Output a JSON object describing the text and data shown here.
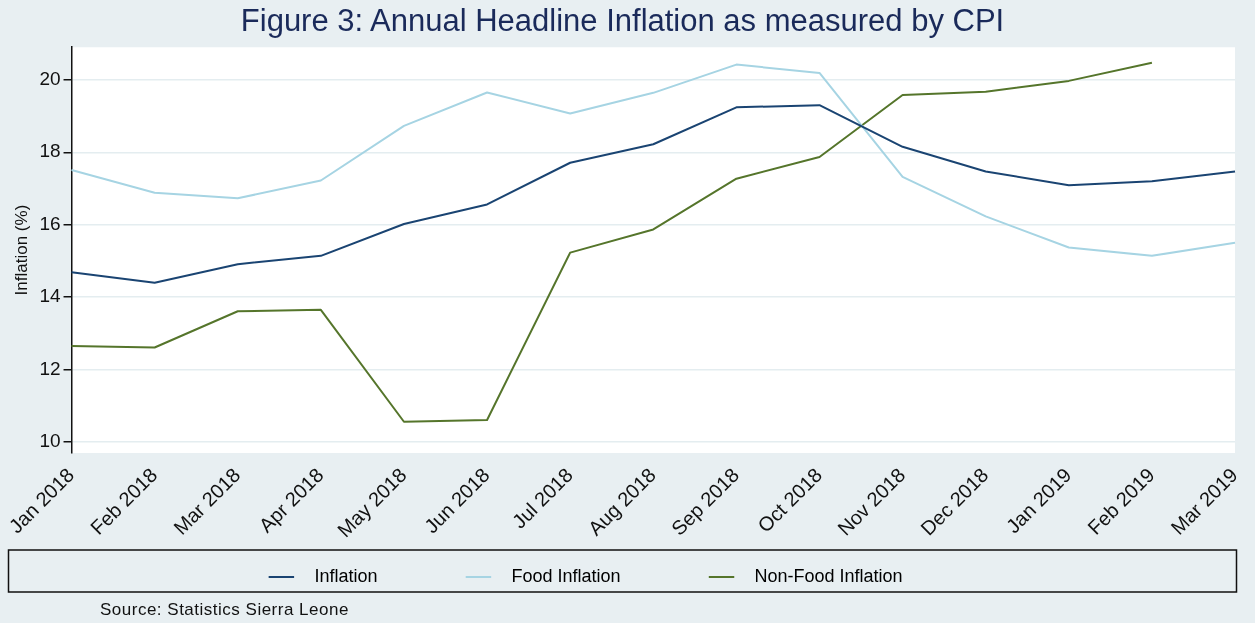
{
  "chart_data": {
    "type": "line",
    "title": "Figure 3: Annual Headline Inflation as measured by CPI",
    "ylabel": "Inflation (%)",
    "categories": [
      "Jan 2018",
      "Feb 2018",
      "Mar 2018",
      "Apr 2018",
      "May 2018",
      "Jun 2018",
      "Jul 2018",
      "Aug 2018",
      "Sep 2018",
      "Oct 2018",
      "Nov 2018",
      "Dec 2018",
      "Jan 2019",
      "Feb 2019",
      "Mar 2019"
    ],
    "series": [
      {
        "name": "Inflation",
        "color": "#1a4472",
        "values": [
          14.69,
          14.4,
          14.91,
          15.14,
          16.02,
          16.56,
          17.71,
          18.22,
          19.24,
          19.3,
          18.15,
          17.47,
          17.09,
          17.2,
          17.47
        ]
      },
      {
        "name": "Food Inflation",
        "color": "#a6d4e3",
        "values": [
          17.51,
          16.88,
          16.73,
          17.22,
          18.73,
          19.65,
          19.07,
          19.64,
          20.42,
          20.19,
          17.32,
          16.23,
          15.37,
          15.14,
          15.5
        ]
      },
      {
        "name": "Non-Food Inflation",
        "color": "#55752b",
        "values": [
          12.65,
          12.61,
          13.61,
          13.65,
          10.56,
          10.61,
          15.23,
          15.87,
          17.27,
          17.87,
          19.58,
          19.67,
          19.97,
          20.47,
          null
        ]
      }
    ],
    "ylim": [
      9.7,
      20.9
    ],
    "yticks": [
      10,
      12,
      14,
      16,
      18,
      20
    ],
    "grid": "y",
    "legend": "bottom",
    "marker": "none",
    "line_style": "solid",
    "annotations": [
      "Source: Statistics Sierra Leone"
    ]
  }
}
